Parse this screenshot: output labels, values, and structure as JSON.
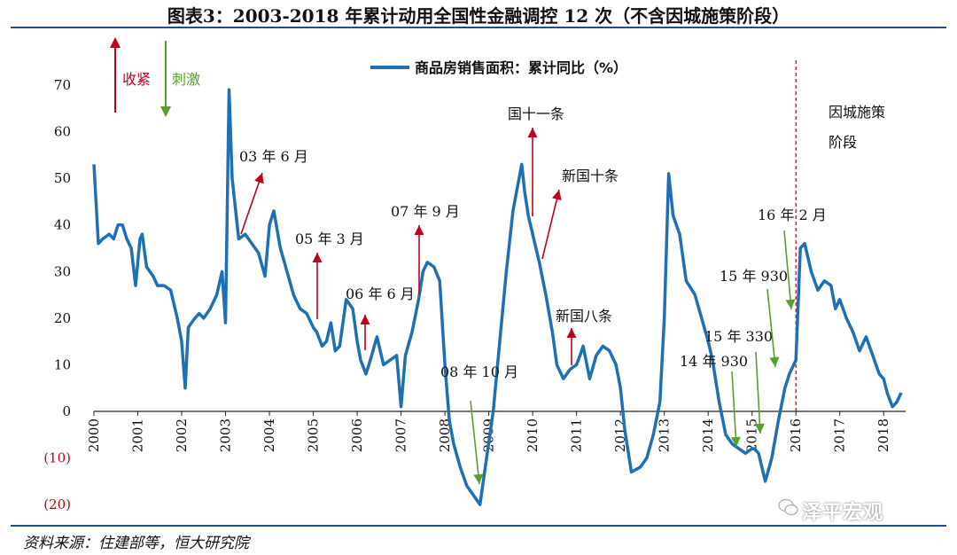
{
  "title": "图表3：2003-2018 年累计动用全国性金融调控 12 次（不含因城施策阶段）",
  "source": "资料来源：住建部等，恒大研究院",
  "watermark": "泽平宏观",
  "key": {
    "tighten_label": "收紧",
    "stimulus_label": "刺激",
    "tighten_color": "#c0001a",
    "stimulus_color": "#5a9e2f"
  },
  "region_label_line1": "因城施策",
  "region_label_line2": "阶段",
  "chart_data": {
    "type": "line",
    "title": "图表3：2003-2018 年累计动用全国性金融调控 12 次（不含因城施策阶段）",
    "legend": "商品房销售面积：累计同比（%）",
    "legend_placement": "top",
    "line_color": "#1f6fb5",
    "ylim": [
      -20,
      70
    ],
    "yticks": [
      {
        "value": 70,
        "label": "70"
      },
      {
        "value": 60,
        "label": "60"
      },
      {
        "value": 50,
        "label": "50"
      },
      {
        "value": 40,
        "label": "40"
      },
      {
        "value": 30,
        "label": "30"
      },
      {
        "value": 20,
        "label": "20"
      },
      {
        "value": 10,
        "label": "10"
      },
      {
        "value": 0,
        "label": "0"
      },
      {
        "value": -10,
        "label": "(10)"
      },
      {
        "value": -20,
        "label": "(20)"
      }
    ],
    "xlim": [
      2000.0,
      2018.5
    ],
    "xticks": [
      "2000",
      "2001",
      "2002",
      "2003",
      "2004",
      "2005",
      "2006",
      "2007",
      "2008",
      "2009",
      "2010",
      "2011",
      "2012",
      "2013",
      "2014",
      "2015",
      "2016",
      "2017",
      "2018"
    ],
    "grid": false,
    "divider_year": 2016.0,
    "series": [
      {
        "name": "商品房销售面积：累计同比（%）",
        "x": [
          2000.0,
          2000.1,
          2000.2,
          2000.35,
          2000.45,
          2000.55,
          2000.65,
          2000.75,
          2000.85,
          2000.95,
          2001.05,
          2001.1,
          2001.2,
          2001.35,
          2001.45,
          2001.6,
          2001.75,
          2001.9,
          2002.0,
          2002.08,
          2002.15,
          2002.3,
          2002.4,
          2002.5,
          2002.65,
          2002.8,
          2002.92,
          2003.0,
          2003.08,
          2003.15,
          2003.3,
          2003.45,
          2003.6,
          2003.75,
          2003.9,
          2004.0,
          2004.1,
          2004.25,
          2004.4,
          2004.55,
          2004.7,
          2004.85,
          2005.0,
          2005.08,
          2005.2,
          2005.3,
          2005.4,
          2005.5,
          2005.6,
          2005.75,
          2005.9,
          2006.0,
          2006.08,
          2006.2,
          2006.3,
          2006.45,
          2006.6,
          2006.75,
          2006.9,
          2007.0,
          2007.1,
          2007.25,
          2007.4,
          2007.5,
          2007.6,
          2007.75,
          2007.88,
          2008.0,
          2008.1,
          2008.2,
          2008.35,
          2008.5,
          2008.65,
          2008.8,
          2008.95,
          2009.1,
          2009.25,
          2009.4,
          2009.55,
          2009.65,
          2009.75,
          2009.82,
          2009.9,
          2010.0,
          2010.15,
          2010.3,
          2010.45,
          2010.55,
          2010.7,
          2010.85,
          2011.0,
          2011.08,
          2011.15,
          2011.3,
          2011.45,
          2011.6,
          2011.75,
          2011.9,
          2012.0,
          2012.1,
          2012.25,
          2012.45,
          2012.6,
          2012.75,
          2012.9,
          2013.0,
          2013.1,
          2013.2,
          2013.35,
          2013.5,
          2013.7,
          2013.85,
          2014.0,
          2014.1,
          2014.25,
          2014.4,
          2014.55,
          2014.7,
          2014.85,
          2015.0,
          2015.05,
          2015.15,
          2015.3,
          2015.45,
          2015.6,
          2015.75,
          2015.85,
          2016.0,
          2016.1,
          2016.2,
          2016.35,
          2016.5,
          2016.65,
          2016.8,
          2016.9,
          2017.0,
          2017.15,
          2017.3,
          2017.45,
          2017.6,
          2017.75,
          2017.9,
          2018.0,
          2018.08,
          2018.2,
          2018.3,
          2018.4
        ],
        "y": [
          53,
          36,
          37,
          38,
          37,
          40,
          40,
          37,
          35,
          27,
          37,
          38,
          31,
          29,
          27,
          27,
          26,
          20,
          15,
          5,
          18,
          20,
          21,
          20,
          22,
          25,
          30,
          19,
          69,
          50,
          37,
          38,
          36,
          34,
          29,
          40,
          43,
          35,
          30,
          25,
          22,
          21,
          18,
          17,
          14,
          15,
          19,
          13,
          14,
          24,
          22,
          15,
          11,
          8,
          11,
          16,
          10,
          11,
          12,
          1,
          12,
          17,
          24,
          30,
          32,
          31,
          28,
          10,
          -2,
          -7,
          -12,
          -16,
          -18,
          -20,
          -10,
          0,
          15,
          30,
          43,
          48,
          53,
          47,
          42,
          38,
          32,
          25,
          17,
          10,
          7,
          9,
          10,
          12,
          14,
          7,
          12,
          14,
          13,
          10,
          5,
          -4,
          -13,
          -12,
          -10,
          -5,
          2,
          20,
          51,
          42,
          38,
          28,
          25,
          20,
          15,
          11,
          2,
          -5,
          -7,
          -8,
          -9,
          -8,
          -8,
          -9,
          -15,
          -10,
          -2,
          5,
          8,
          11,
          35,
          36,
          30,
          26,
          28,
          27,
          22,
          24,
          20,
          17,
          13,
          16,
          12,
          8,
          7,
          4,
          1,
          2,
          4
        ]
      }
    ],
    "annotations": [
      {
        "label": "03 年 6 月",
        "kind": "tighten",
        "year": 2003.4
      },
      {
        "label": "05 年 3 月",
        "kind": "tighten",
        "year": 2005.1
      },
      {
        "label": "06 年 6 月",
        "kind": "tighten",
        "year": 2006.1
      },
      {
        "label": "07 年 9 月",
        "kind": "tighten",
        "year": 2007.3
      },
      {
        "label": "08 年 10 月",
        "kind": "stimulus",
        "year": 2008.8
      },
      {
        "label": "国十一条",
        "kind": "tighten",
        "year": 2010.0
      },
      {
        "label": "新国十条",
        "kind": "tighten",
        "year": 2010.3
      },
      {
        "label": "新国八条",
        "kind": "tighten",
        "year": 2010.9
      },
      {
        "label": "14 年 930",
        "kind": "stimulus",
        "year": 2014.6
      },
      {
        "label": "15 年 330",
        "kind": "stimulus",
        "year": 2015.1
      },
      {
        "label": "15 年 930",
        "kind": "stimulus",
        "year": 2015.4
      },
      {
        "label": "16 年 2 月",
        "kind": "stimulus",
        "year": 2015.9
      }
    ]
  }
}
